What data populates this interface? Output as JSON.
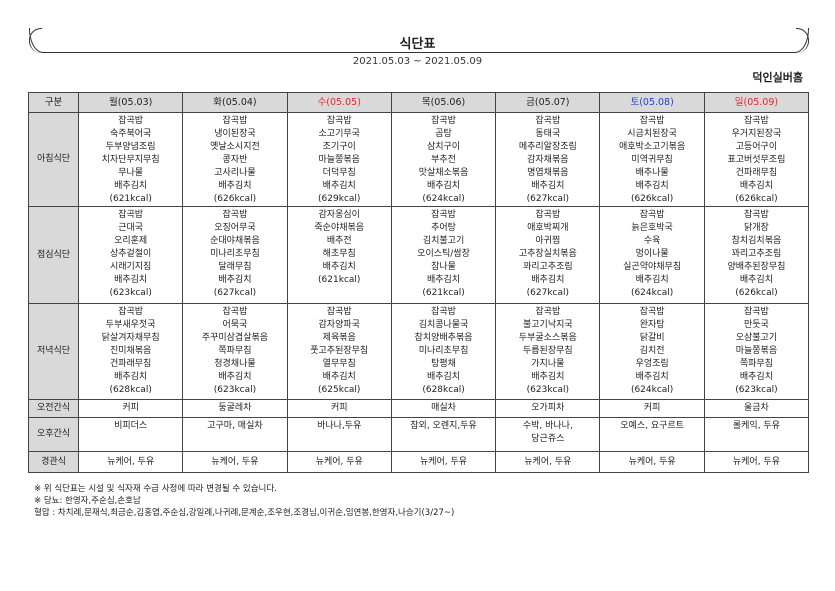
{
  "header": {
    "title": "식단표",
    "period": "2021.05.03 ~ 2021.05.09",
    "facility": "덕인실버홈"
  },
  "table": {
    "corner": "구분",
    "days": [
      {
        "label": "월(05.03)",
        "color": "normal"
      },
      {
        "label": "화(05.04)",
        "color": "normal"
      },
      {
        "label": "수(05.05)",
        "color": "red"
      },
      {
        "label": "목(05.06)",
        "color": "normal"
      },
      {
        "label": "금(05.07)",
        "color": "normal"
      },
      {
        "label": "토(05.08)",
        "color": "blue"
      },
      {
        "label": "일(05.09)",
        "color": "red"
      }
    ],
    "colors": {
      "red": "#e8262b",
      "blue": "#2a3fd6",
      "label_bg": "#d9d9d9"
    },
    "rows": [
      {
        "label": "아침식단",
        "cells": [
          [
            "잡곡밥",
            "숙주북어국",
            "두부양념조림",
            "치자단무지무침",
            "무나물",
            "배추김치",
            "(621kcal)"
          ],
          [
            "잡곡밥",
            "냉이된장국",
            "옛날소시지전",
            "콩자반",
            "고사리나물",
            "배추김치",
            "(626kcal)"
          ],
          [
            "잡곡밥",
            "소고기무국",
            "조기구이",
            "마늘쫑볶음",
            "더덕무침",
            "배추김치",
            "(629kcal)"
          ],
          [
            "잡곡밥",
            "곰탕",
            "삼치구이",
            "부추전",
            "맛살채소볶음",
            "배추김치",
            "(624kcal)"
          ],
          [
            "잡곡밥",
            "동태국",
            "메추리알장조림",
            "감자채볶음",
            "명엽채볶음",
            "배추김치",
            "(627kcal)"
          ],
          [
            "잡곡밥",
            "시금치된장국",
            "애호박소고기볶음",
            "미역귀무침",
            "배추나물",
            "배추김치",
            "(626kcal)"
          ],
          [
            "잡곡밥",
            "우거지된장국",
            "고등어구이",
            "표고버섯무조림",
            "건파래무침",
            "배추김치",
            "(626kcal)"
          ]
        ]
      },
      {
        "label": "점심식단",
        "cells": [
          [
            "잡곡밥",
            "근대국",
            "오리훈제",
            "상추겉절이",
            "시래기지짐",
            "배추김치",
            "(623kcal)"
          ],
          [
            "잡곡밥",
            "오징어무국",
            "순대야채볶음",
            "미나리초무침",
            "달래무침",
            "배추김치",
            "(627kcal)"
          ],
          [
            "감자옹심이",
            "죽순야채볶음",
            "배추전",
            "해초무침",
            "배추김치",
            "(621kcal)"
          ],
          [
            "잡곡밥",
            "추어탕",
            "김치불고기",
            "오이스틱/쌈장",
            "참나물",
            "배추김치",
            "(621kcal)"
          ],
          [
            "잡곡밥",
            "애호박찌개",
            "아귀찜",
            "고추장실치볶음",
            "꽈리고추조림",
            "배추김치",
            "(627kcal)"
          ],
          [
            "잡곡밥",
            "늙은호박국",
            "수육",
            "멍이나물",
            "실곤약야채무침",
            "배추김치",
            "(624kcal)"
          ],
          [
            "잡곡밥",
            "닭개장",
            "참치김치볶음",
            "꽈리고추조림",
            "양배추된장무침",
            "배추김치",
            "(626kcal)"
          ]
        ]
      },
      {
        "label": "저녁식단",
        "cells": [
          [
            "잡곡밥",
            "두부새우젓국",
            "닭살겨자채무침",
            "진미채볶음",
            "건파래무침",
            "배추김치",
            "(628kcal)"
          ],
          [
            "잡곡밥",
            "어묵국",
            "주꾸미삼겹살볶음",
            "쪽파무침",
            "청경채나물",
            "배추김치",
            "(623kcal)"
          ],
          [
            "잡곡밥",
            "감자양파국",
            "제육볶음",
            "풋고추된장무침",
            "열무무침",
            "배추김치",
            "(625kcal)"
          ],
          [
            "잡곡밥",
            "김치콩나물국",
            "참치양배추볶음",
            "미나리초무침",
            "탕평채",
            "배추김치",
            "(628kcal)"
          ],
          [
            "잡곡밥",
            "불고기낙지국",
            "두부굴소스볶음",
            "두릅된장무침",
            "가지나물",
            "배추김치",
            "(623kcal)"
          ],
          [
            "잡곡밥",
            "완자탕",
            "닭갈비",
            "김치전",
            "우엉조림",
            "배추김치",
            "(624kcal)"
          ],
          [
            "잡곡밥",
            "만둣국",
            "오삼불고기",
            "마늘쫑볶음",
            "쪽파무침",
            "배추김치",
            "(623kcal)"
          ]
        ]
      },
      {
        "label": "오전간식",
        "cells": [
          [
            "커피"
          ],
          [
            "둥굴레차"
          ],
          [
            "커피"
          ],
          [
            "매실차"
          ],
          [
            "오가피차"
          ],
          [
            "커피"
          ],
          [
            "울금차"
          ]
        ]
      },
      {
        "label": "오후간식",
        "cells": [
          [
            "비피더스"
          ],
          [
            "고구마, 매실차"
          ],
          [
            "바나나,두유"
          ],
          [
            "참외, 오렌지,두유"
          ],
          [
            "수박, 바나나,",
            "당근쥬스"
          ],
          [
            "오예스, 요구르트"
          ],
          [
            "롤케익, 두유"
          ]
        ]
      },
      {
        "label": "경관식",
        "cells": [
          [
            "뉴케어, 두유"
          ],
          [
            "뉴케어, 두유"
          ],
          [
            "뉴케어, 두유"
          ],
          [
            "뉴케어, 두유"
          ],
          [
            "뉴케어, 두유"
          ],
          [
            "뉴케어, 두유"
          ],
          [
            "뉴케어, 두유"
          ]
        ]
      }
    ]
  },
  "notes": [
    "※ 위 식단표는 시설 및 식자재 수급 사정에 따라 변경될 수 있습니다.",
    "※ 당뇨: 한영자,주순심,손호남",
    " 혈압 : 차치례,문재식,최금순,김홍엽,주순심,강일례,나귀례,문계순,조우현,조경님,이귀순,임연봉,한영자,나승기(3/27~)"
  ]
}
